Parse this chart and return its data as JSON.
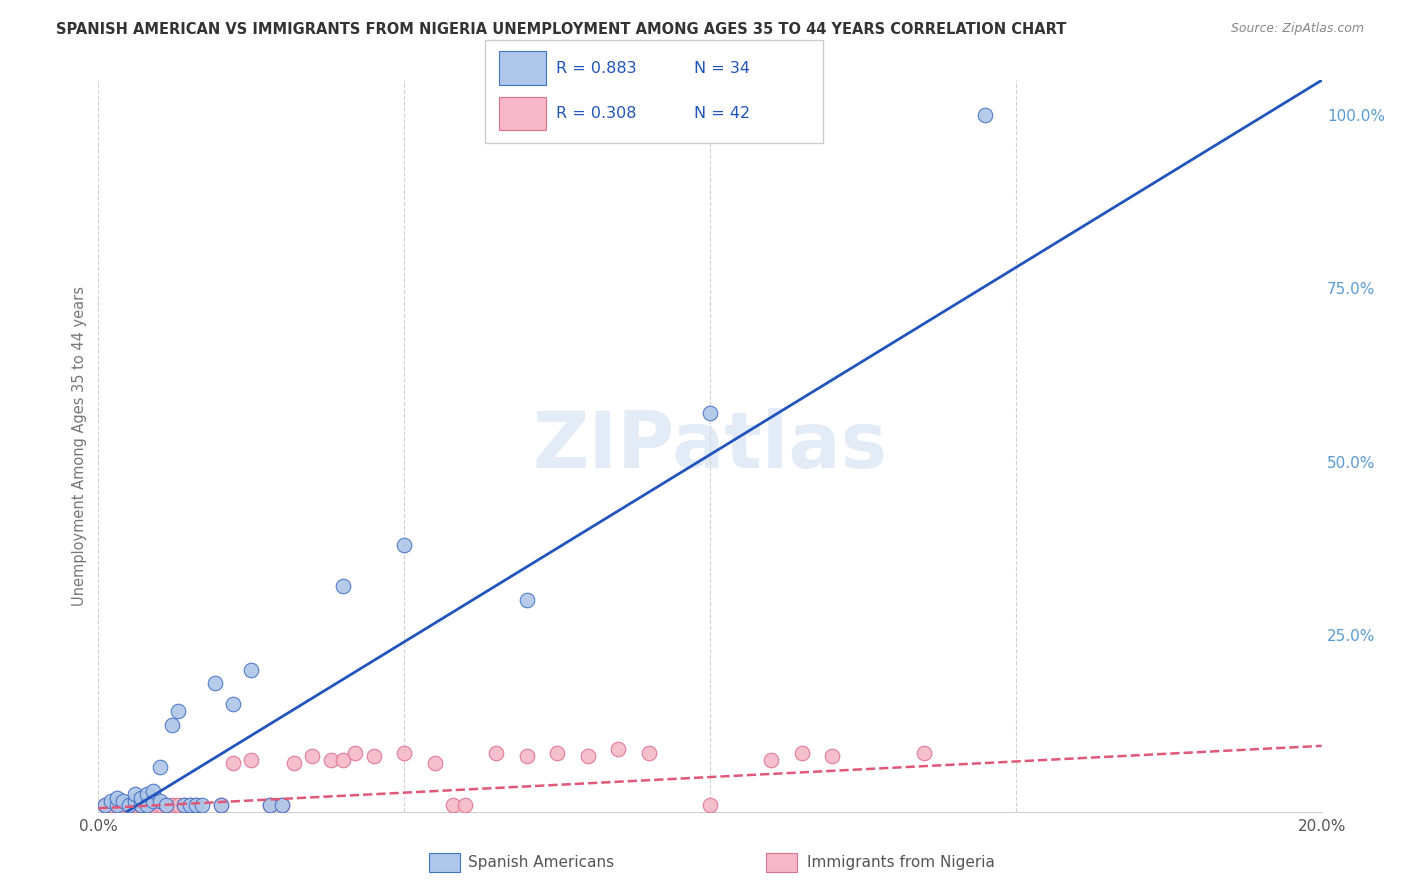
{
  "title": "SPANISH AMERICAN VS IMMIGRANTS FROM NIGERIA UNEMPLOYMENT AMONG AGES 35 TO 44 YEARS CORRELATION CHART",
  "source": "Source: ZipAtlas.com",
  "ylabel": "Unemployment Among Ages 35 to 44 years",
  "xmin": 0.0,
  "xmax": 0.2,
  "ymin": -0.005,
  "ymax": 1.05,
  "xticks": [
    0.0,
    0.05,
    0.1,
    0.15,
    0.2
  ],
  "xtick_labels": [
    "0.0%",
    "",
    "",
    "",
    "20.0%"
  ],
  "yticks_right": [
    0.0,
    0.25,
    0.5,
    0.75,
    1.0
  ],
  "ytick_labels_right": [
    "",
    "25.0%",
    "50.0%",
    "75.0%",
    "100.0%"
  ],
  "legend_labels": [
    "Spanish Americans",
    "Immigrants from Nigeria"
  ],
  "R_blue": 0.883,
  "N_blue": 34,
  "R_pink": 0.308,
  "N_pink": 42,
  "blue_color": "#aec6e8",
  "pink_color": "#f5b8c8",
  "blue_edge_color": "#4472c4",
  "pink_edge_color": "#e07090",
  "blue_line_color": "#2255bb",
  "pink_line_color": "#e05878",
  "watermark": "ZIPatlas",
  "blue_scatter_x": [
    0.001,
    0.002,
    0.003,
    0.003,
    0.004,
    0.005,
    0.006,
    0.006,
    0.007,
    0.007,
    0.008,
    0.008,
    0.009,
    0.009,
    0.01,
    0.01,
    0.011,
    0.012,
    0.013,
    0.014,
    0.015,
    0.016,
    0.017,
    0.019,
    0.02,
    0.022,
    0.025,
    0.028,
    0.03,
    0.04,
    0.05,
    0.07,
    0.1,
    0.145
  ],
  "blue_scatter_y": [
    0.005,
    0.01,
    0.005,
    0.015,
    0.01,
    0.005,
    0.01,
    0.02,
    0.005,
    0.015,
    0.005,
    0.02,
    0.01,
    0.025,
    0.01,
    0.06,
    0.005,
    0.12,
    0.14,
    0.005,
    0.005,
    0.005,
    0.005,
    0.18,
    0.005,
    0.15,
    0.2,
    0.005,
    0.005,
    0.32,
    0.38,
    0.3,
    0.57,
    1.0
  ],
  "pink_scatter_x": [
    0.001,
    0.002,
    0.003,
    0.004,
    0.005,
    0.006,
    0.007,
    0.008,
    0.009,
    0.01,
    0.011,
    0.012,
    0.013,
    0.014,
    0.015,
    0.016,
    0.02,
    0.022,
    0.025,
    0.028,
    0.03,
    0.032,
    0.035,
    0.038,
    0.04,
    0.042,
    0.045,
    0.05,
    0.055,
    0.058,
    0.06,
    0.065,
    0.07,
    0.075,
    0.08,
    0.085,
    0.09,
    0.1,
    0.11,
    0.115,
    0.12,
    0.135
  ],
  "pink_scatter_y": [
    0.005,
    0.005,
    0.005,
    0.005,
    0.005,
    0.005,
    0.005,
    0.005,
    0.005,
    0.005,
    0.005,
    0.005,
    0.005,
    0.005,
    0.005,
    0.005,
    0.005,
    0.065,
    0.07,
    0.005,
    0.005,
    0.065,
    0.075,
    0.07,
    0.07,
    0.08,
    0.075,
    0.08,
    0.065,
    0.005,
    0.005,
    0.08,
    0.075,
    0.08,
    0.075,
    0.085,
    0.08,
    0.005,
    0.07,
    0.08,
    0.075,
    0.08
  ],
  "blue_line_x": [
    0.0,
    0.2
  ],
  "blue_line_y": [
    -0.03,
    1.05
  ],
  "pink_line_x": [
    0.0,
    0.2
  ],
  "pink_line_y": [
    0.0,
    0.09
  ],
  "background_color": "#ffffff",
  "grid_color": "#cccccc",
  "title_color": "#333333",
  "right_axis_color": "#5b9bd5",
  "left_label_color": "#777777"
}
